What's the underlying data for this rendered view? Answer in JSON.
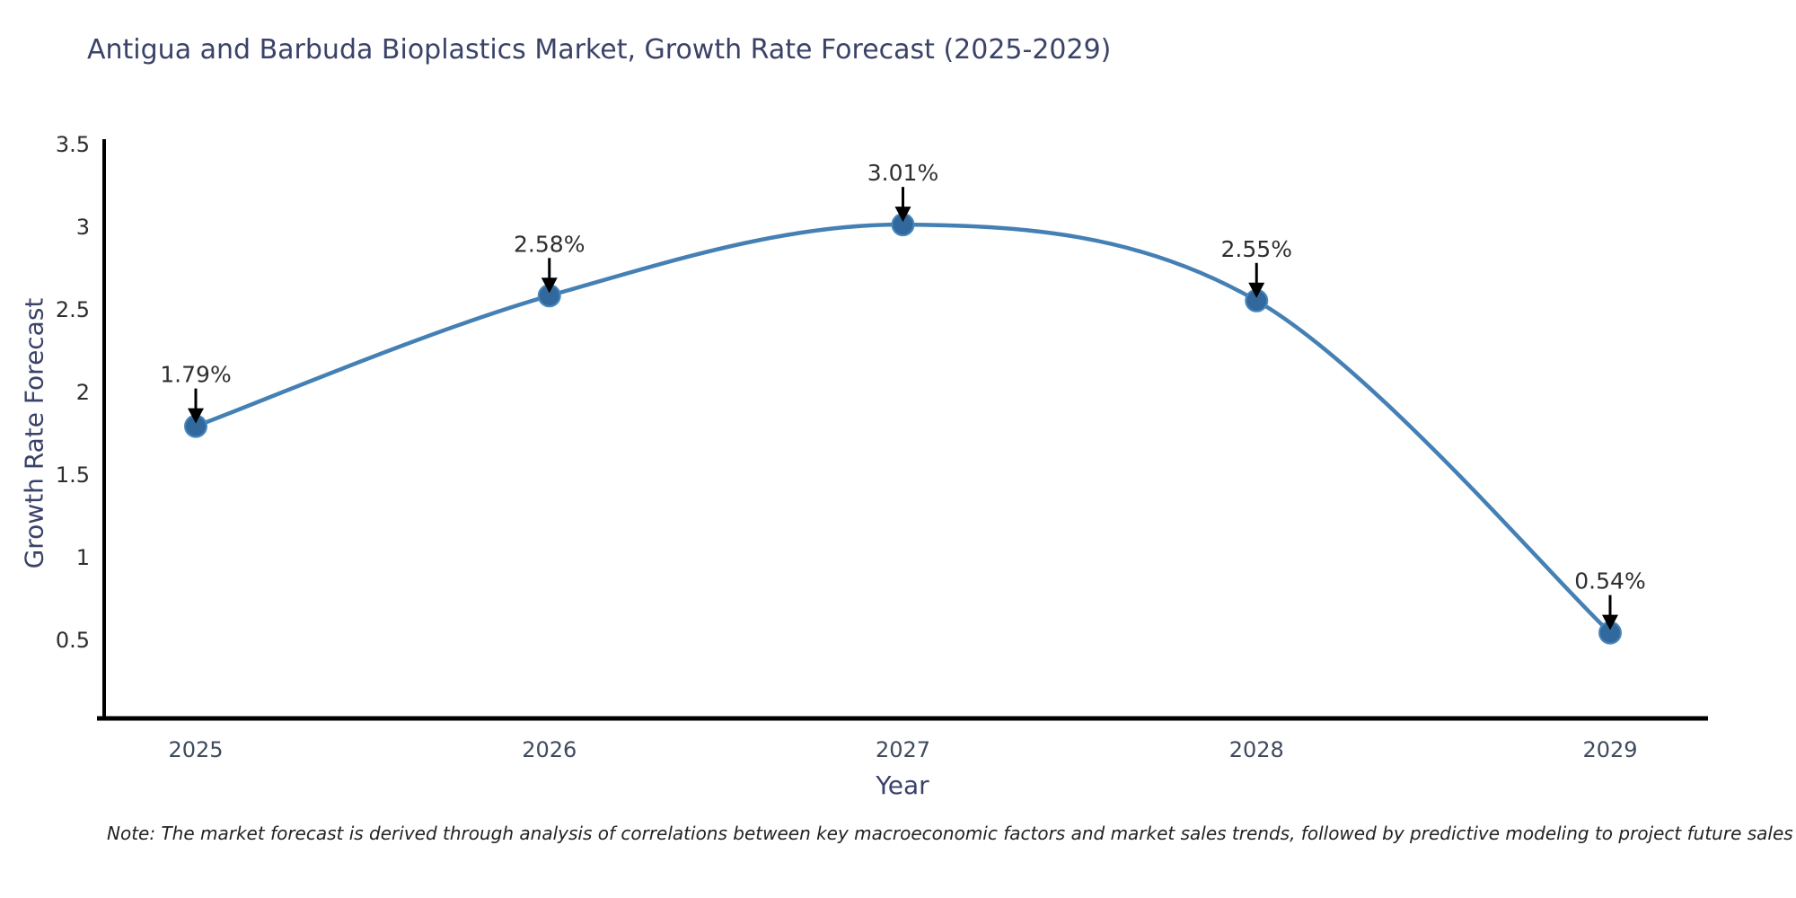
{
  "title": "Antigua and Barbuda Bioplastics Market, Growth Rate Forecast (2025-2029)",
  "note": "Note: The market forecast is derived through analysis of correlations between key macroeconomic factors and market sales trends, followed by predictive modeling to project future sales",
  "chart_data": {
    "type": "line",
    "title": "Antigua and Barbuda Bioplastics Market, Growth Rate Forecast (2025-2029)",
    "xlabel": "Year",
    "ylabel": "Growth Rate Forecast",
    "categories": [
      "2025",
      "2026",
      "2027",
      "2028",
      "2029"
    ],
    "values": [
      1.79,
      2.58,
      3.01,
      2.55,
      0.54
    ],
    "point_labels": [
      "1.79%",
      "2.58%",
      "3.01%",
      "2.55%",
      "0.54%"
    ],
    "yticks": [
      0.5,
      1,
      1.5,
      2,
      2.5,
      3,
      3.5
    ],
    "ylim": [
      0.02,
      3.5
    ],
    "line_shape": "spline",
    "grid": false,
    "legend_position": "none",
    "colors": {
      "line": "#4580b4",
      "marker": "#31699e",
      "marker_edge": "#4987bb",
      "axis": "#000000",
      "annotation_arrow": "#000000",
      "title_text": "#3a4268",
      "axis_title_text": "#3a4268"
    }
  }
}
